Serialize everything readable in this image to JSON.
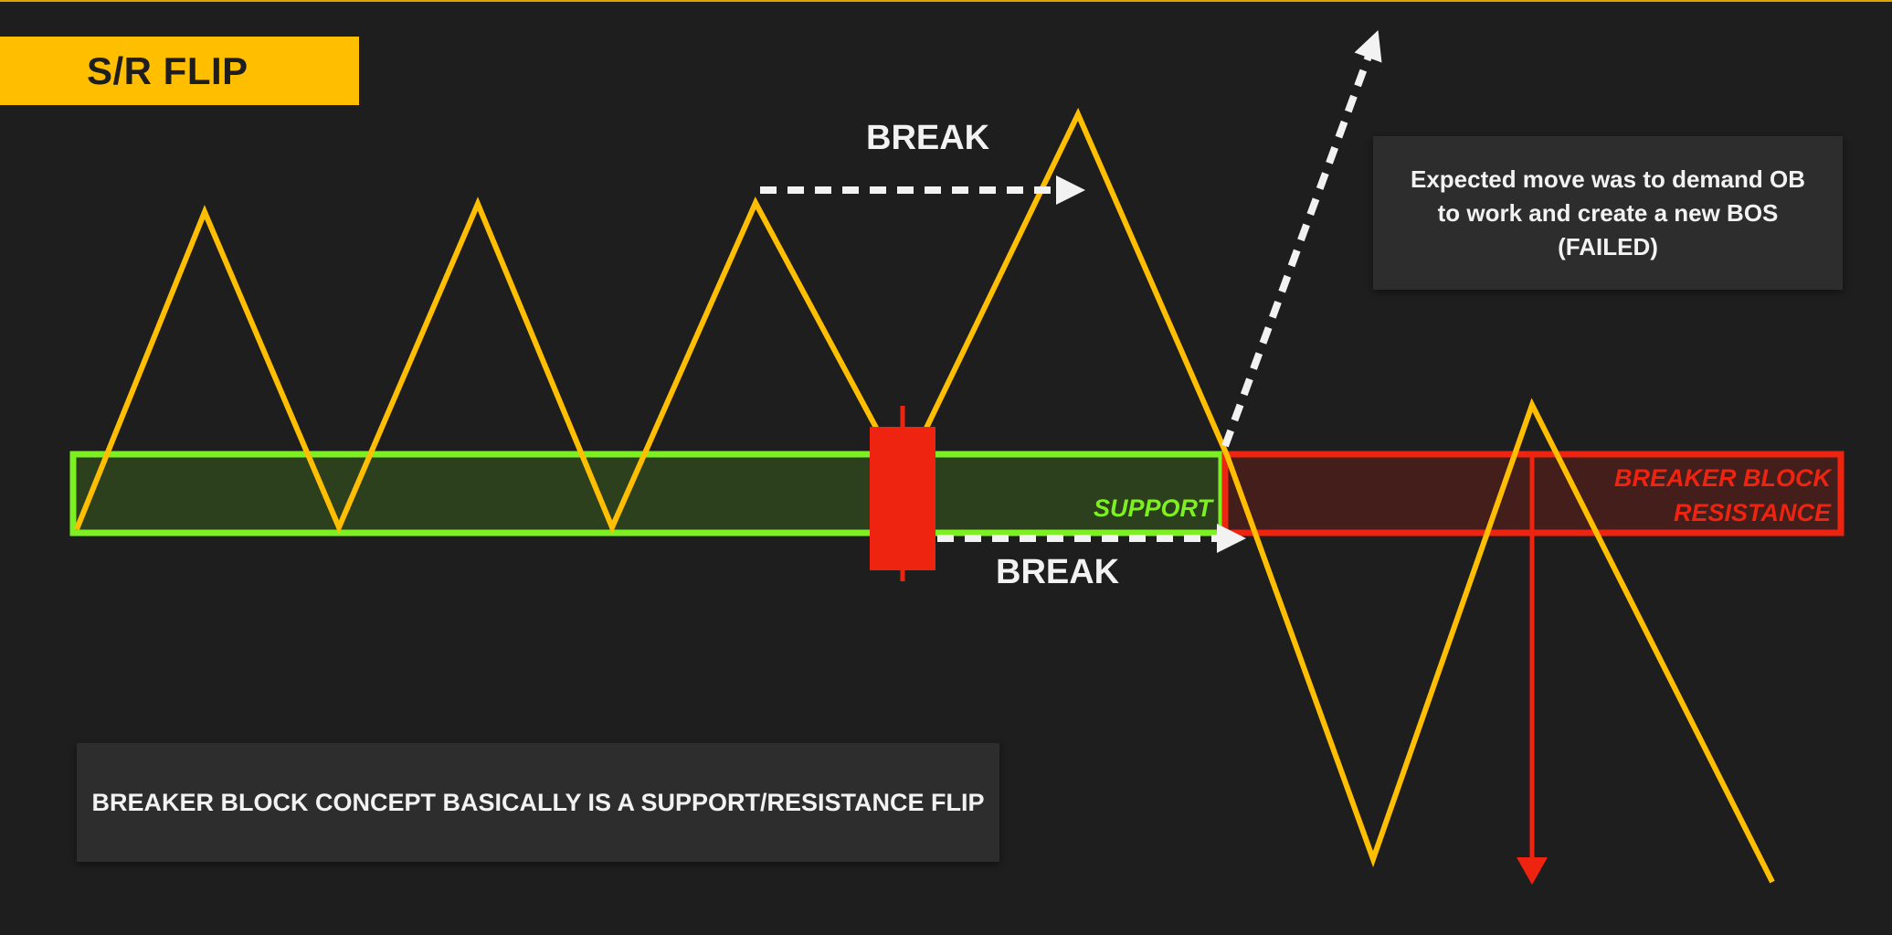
{
  "header": {
    "title": "S/R FLIP"
  },
  "annotations": {
    "break_top": "BREAK",
    "break_bottom": "BREAK",
    "support": "SUPPORT",
    "breaker_line1": "BREAKER BLOCK",
    "breaker_line2": "RESISTANCE"
  },
  "callouts": {
    "expected_move": "Expected move was to demand OB to work and create a new BOS (FAILED)",
    "concept": "BREAKER BLOCK CONCEPT BASICALLY IS A SUPPORT/RESISTANCE FLIP"
  },
  "colors": {
    "background": "#1e1e1e",
    "price_path": "#ffbf00",
    "support_zone": "#7cf020",
    "resistance_zone": "#ee2410",
    "candle": "#ee2410",
    "arrows": "#f2f2f2",
    "title_badge": "#ffbf00"
  }
}
